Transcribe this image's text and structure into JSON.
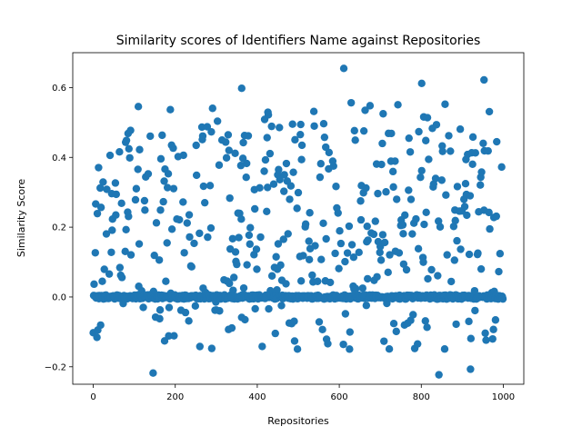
{
  "chart_data": {
    "type": "scatter",
    "title": "Similarity scores of Identifiers Name against Repositories",
    "xlabel": "Repositories",
    "ylabel": "Similarity Score",
    "xlim": [
      -50,
      1050
    ],
    "ylim": [
      -0.25,
      0.7
    ],
    "xticks": [
      0,
      200,
      400,
      600,
      800,
      1000
    ],
    "yticks": [
      -0.2,
      0.0,
      0.2,
      0.4,
      0.6
    ],
    "ytick_labels": [
      "−0.2",
      "0.0",
      "0.2",
      "0.4",
      "0.6"
    ],
    "grid": false,
    "marker_color": "#1f77b4",
    "x_count": 1000,
    "notable_points": [
      {
        "x": 611,
        "y": 0.655
      },
      {
        "x": 953,
        "y": 0.622
      },
      {
        "x": 801,
        "y": 0.612
      },
      {
        "x": 362,
        "y": 0.598
      },
      {
        "x": 146,
        "y": -0.218
      },
      {
        "x": 843,
        "y": -0.223
      },
      {
        "x": 920,
        "y": -0.207
      }
    ]
  }
}
